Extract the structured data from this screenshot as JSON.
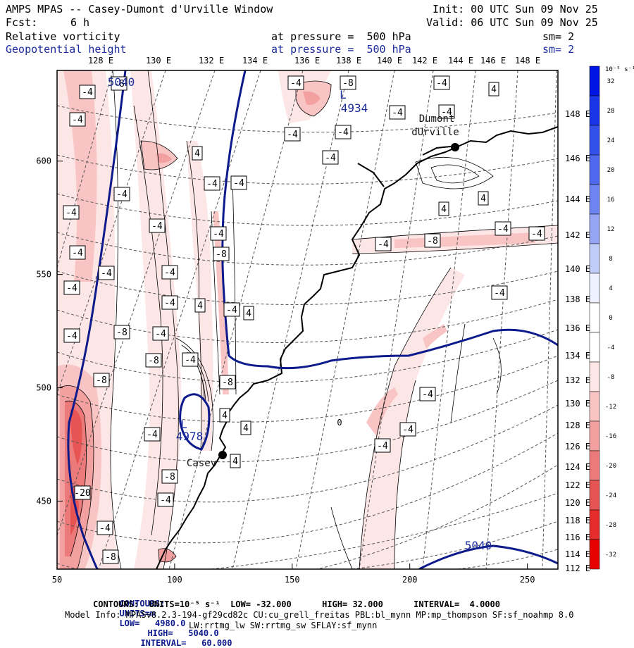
{
  "header": {
    "title": "AMPS MPAS -- Casey-Dumont d'Urville Window",
    "init": "Init: 00 UTC Sun 09 Nov 25",
    "fcst_label": "Fcst:",
    "fcst_value": "6 h",
    "valid": "Valid: 06 UTC Sun 09 Nov 25",
    "field1_name": "Relative vorticity",
    "field1_level": "at pressure =  500 hPa",
    "field1_sm": "sm= 2",
    "field2_name": "Geopotential height",
    "field2_level": "at pressure =  500 hPa",
    "field2_sm": "sm= 2"
  },
  "chart_data": {
    "type": "contour",
    "x_ticks": [
      "50",
      "100",
      "150",
      "200",
      "250"
    ],
    "y_ticks": [
      "450",
      "500",
      "550",
      "600"
    ],
    "top_lon_labels": [
      "128 E",
      "130 E",
      "132 E",
      "134 E",
      "136 E",
      "138 E",
      "140 E",
      "142 E",
      "144 E",
      "146 E",
      "148 E"
    ],
    "right_lon_labels": [
      "148 E",
      "146 E",
      "144 E",
      "142 E",
      "140 E",
      "138 E",
      "136 E",
      "134 E",
      "132 E",
      "130 E",
      "128 E",
      "126 E",
      "124 E",
      "122 E",
      "120 E",
      "118 E",
      "116 E",
      "114 E",
      "112 E"
    ],
    "colorbar": {
      "unit_label": "10⁻⁵ s⁻¹",
      "ticks": [
        "32",
        "28",
        "24",
        "20",
        "16",
        "12",
        "8",
        "4",
        "0",
        "-4",
        "-8",
        "-12",
        "-16",
        "-20",
        "-24",
        "-28",
        "-32"
      ],
      "colors": [
        "#0014e6",
        "#1a34e8",
        "#3450eb",
        "#5068ee",
        "#6e84f1",
        "#96a6f5",
        "#c2ccf9",
        "#eef1ff",
        "#ffffff",
        "#ffffff",
        "#fde6e6",
        "#f8c4c4",
        "#f2a0a0",
        "#ec7a7a",
        "#e65454",
        "#e52d2d",
        "#e60000"
      ]
    },
    "height_labels": [
      "5040",
      "4934",
      "4978",
      "5040"
    ],
    "station_labels": [
      "Dumont",
      "dUrville",
      "Casey"
    ],
    "vort_labels": [
      "-4",
      "-8",
      "-20",
      "4",
      "0"
    ]
  },
  "footer": {
    "line1_label": "CONTOURS:",
    "line1_units": "UNITS=m",
    "line1_low": "LOW=   4980.0",
    "line1_high": "HIGH=   5040.0",
    "line1_interval": "INTERVAL=   60.000",
    "line2": "CONTOURS:  UNITS=10⁻⁵ s⁻¹  LOW= -32.000      HIGH= 32.000      INTERVAL=  4.0000",
    "model_info": "Model Info: MPASv8.2.3-194-gf29cd82c CU:cu_grell_freitas PBL:bl_mynn MP:mp_thompson SF:sf_noahmp 8.0",
    "model_info2": "LW:rrtmg_lw SW:rrtmg_sw SFLAY:sf_mynn"
  }
}
